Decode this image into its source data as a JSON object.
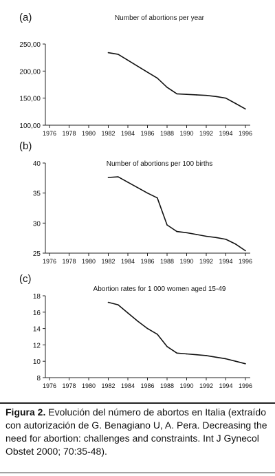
{
  "chart_data": [
    {
      "type": "line",
      "panel_label": "(a)",
      "title": "Number of abortions per year",
      "x_ticks": [
        "1976",
        "1978",
        "1980",
        "1982",
        "1984",
        "1986",
        "1988",
        "1990",
        "1992",
        "1994",
        "1996"
      ],
      "y_ticks": [
        "250,00",
        "200,00",
        "150,00",
        "100,00"
      ],
      "ylim": [
        100,
        250
      ],
      "xlim": [
        1975.5,
        1996.5
      ],
      "x": [
        1982,
        1983,
        1984,
        1985,
        1986,
        1987,
        1988,
        1989,
        1990,
        1991,
        1992,
        1993,
        1994,
        1995,
        1996
      ],
      "values": [
        234,
        231,
        220,
        209,
        198,
        187,
        170,
        158,
        157,
        156,
        155,
        153,
        150,
        140,
        130
      ]
    },
    {
      "type": "line",
      "panel_label": "(b)",
      "title": "Number of abortions per 100 births",
      "x_ticks": [
        "1976",
        "1978",
        "1980",
        "1982",
        "1984",
        "1986",
        "1988",
        "1990",
        "1992",
        "1994",
        "1996"
      ],
      "y_ticks": [
        "40",
        "35",
        "30",
        "25"
      ],
      "ylim": [
        25,
        40
      ],
      "xlim": [
        1975.5,
        1996.5
      ],
      "x": [
        1982,
        1983,
        1984,
        1985,
        1986,
        1987,
        1988,
        1989,
        1990,
        1991,
        1992,
        1993,
        1994,
        1995,
        1996
      ],
      "values": [
        37.6,
        37.7,
        36.8,
        35.9,
        35.0,
        34.2,
        29.7,
        28.6,
        28.4,
        28.1,
        27.8,
        27.6,
        27.3,
        26.5,
        25.4
      ]
    },
    {
      "type": "line",
      "panel_label": "(c)",
      "title": "Abortion rates for 1 000 women aged 15-49",
      "x_ticks": [
        "1976",
        "1978",
        "1980",
        "1982",
        "1984",
        "1986",
        "1988",
        "1990",
        "1992",
        "1994",
        "1996"
      ],
      "y_ticks": [
        "18",
        "16",
        "14",
        "12",
        "10",
        "8"
      ],
      "ylim": [
        8,
        18
      ],
      "xlim": [
        1975.5,
        1996.5
      ],
      "x": [
        1982,
        1983,
        1984,
        1985,
        1986,
        1987,
        1988,
        1989,
        1990,
        1991,
        1992,
        1993,
        1994,
        1995,
        1996
      ],
      "values": [
        17.2,
        16.9,
        15.9,
        14.9,
        14.0,
        13.3,
        11.8,
        11.0,
        10.9,
        10.8,
        10.7,
        10.5,
        10.3,
        10.0,
        9.7
      ]
    }
  ],
  "caption": {
    "label": "Figura 2.",
    "text": " Evolución del número de abortos en Italia (extraído con autorización de G. Benagiano U, A. Pera. Decreasing the need for abortion: challenges and constraints. Int J Gynecol Obstet 2000; 70:35-48)."
  }
}
